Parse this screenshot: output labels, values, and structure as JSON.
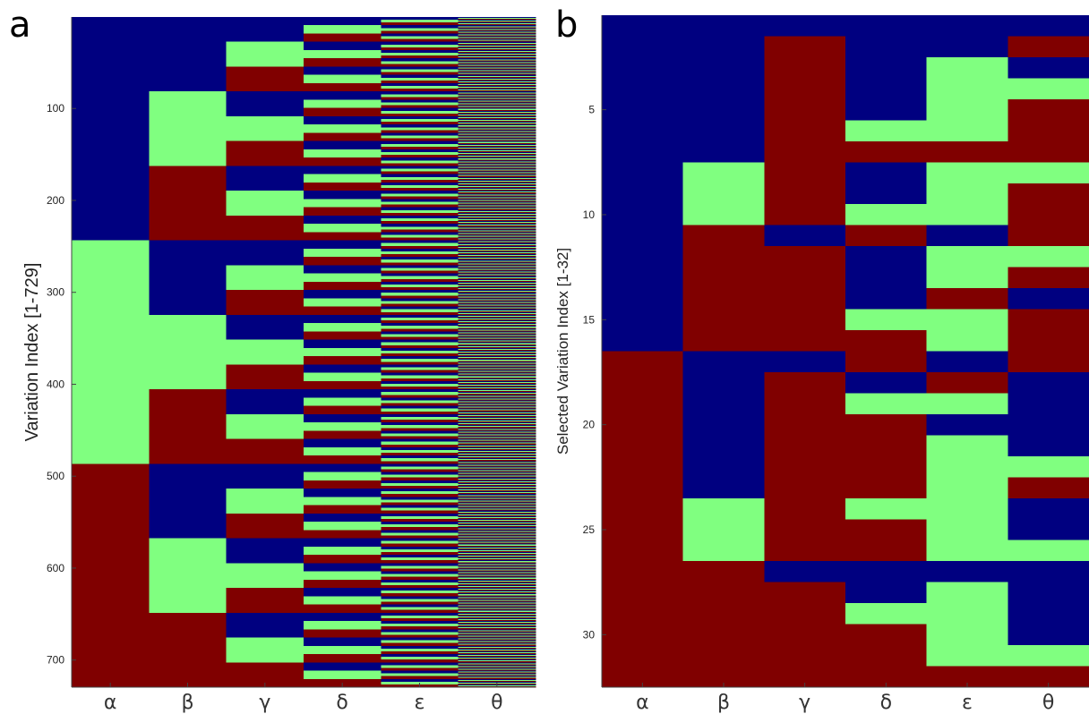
{
  "panels": [
    {
      "label": "a"
    },
    {
      "label": "b"
    }
  ],
  "colors": {
    "0": "#000080",
    "1": "#80ff80",
    "2": "#800000"
  },
  "chart_data": [
    {
      "type": "heatmap",
      "panel": "a",
      "ylabel": "Variation Index [1-729]",
      "categories": [
        "α",
        "β",
        "γ",
        "δ",
        "ε",
        "θ"
      ],
      "yticks": [
        100,
        200,
        300,
        400,
        500,
        600,
        700
      ],
      "ylim": [
        1,
        729
      ],
      "encoding": "full factorial of 3 levels over 6 parameters; level index = floor((i-1)/3^(5-c)) mod 3 for column c, row i",
      "levels": [
        "blue",
        "green",
        "red"
      ]
    },
    {
      "type": "heatmap",
      "panel": "b",
      "ylabel": "Selected Variation Index [1-32]",
      "categories": [
        "α",
        "β",
        "γ",
        "δ",
        "ε",
        "θ"
      ],
      "yticks": [
        5,
        10,
        15,
        20,
        25,
        30
      ],
      "ylim": [
        1,
        32
      ],
      "levels": [
        "blue",
        "green",
        "red"
      ],
      "rows": [
        [
          0,
          0,
          0,
          0,
          0,
          0
        ],
        [
          0,
          0,
          2,
          0,
          0,
          2
        ],
        [
          0,
          0,
          2,
          0,
          1,
          0
        ],
        [
          0,
          0,
          2,
          0,
          1,
          1
        ],
        [
          0,
          0,
          2,
          0,
          1,
          2
        ],
        [
          0,
          0,
          2,
          1,
          1,
          2
        ],
        [
          0,
          0,
          2,
          2,
          2,
          2
        ],
        [
          0,
          1,
          2,
          0,
          1,
          1
        ],
        [
          0,
          1,
          2,
          0,
          1,
          2
        ],
        [
          0,
          1,
          2,
          1,
          1,
          2
        ],
        [
          0,
          2,
          0,
          2,
          0,
          2
        ],
        [
          0,
          2,
          2,
          0,
          1,
          1
        ],
        [
          0,
          2,
          2,
          0,
          1,
          2
        ],
        [
          0,
          2,
          2,
          0,
          2,
          0
        ],
        [
          0,
          2,
          2,
          1,
          1,
          2
        ],
        [
          0,
          2,
          2,
          2,
          1,
          2
        ],
        [
          2,
          0,
          0,
          2,
          0,
          2
        ],
        [
          2,
          0,
          2,
          0,
          2,
          0
        ],
        [
          2,
          0,
          2,
          1,
          1,
          0
        ],
        [
          2,
          0,
          2,
          2,
          0,
          0
        ],
        [
          2,
          0,
          2,
          2,
          1,
          0
        ],
        [
          2,
          0,
          2,
          2,
          1,
          1
        ],
        [
          2,
          0,
          2,
          2,
          1,
          2
        ],
        [
          2,
          1,
          2,
          1,
          1,
          0
        ],
        [
          2,
          1,
          2,
          2,
          1,
          0
        ],
        [
          2,
          1,
          2,
          2,
          1,
          1
        ],
        [
          2,
          2,
          0,
          0,
          0,
          0
        ],
        [
          2,
          2,
          2,
          0,
          1,
          0
        ],
        [
          2,
          2,
          2,
          1,
          1,
          0
        ],
        [
          2,
          2,
          2,
          2,
          1,
          0
        ],
        [
          2,
          2,
          2,
          2,
          1,
          1
        ],
        [
          2,
          2,
          2,
          2,
          2,
          2
        ]
      ]
    }
  ]
}
